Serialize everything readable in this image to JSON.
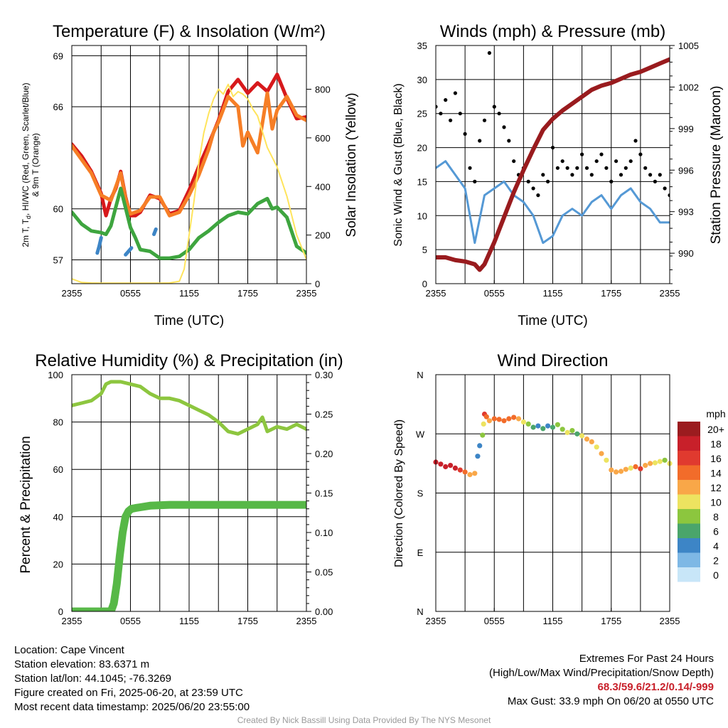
{
  "chart_data": [
    {
      "type": "line",
      "title": "Temperature (F) & Insolation (W/m²)",
      "xlabel": "Time (UTC)",
      "ylabel": "2m T, Td, HI/WC (Red, Green, Scarlet/Blue) & 9m T (Orange)",
      "ylabel_lines": [
        "2m T, T",
        "d",
        ", HI/WC (Red, Green, Scarlet/Blue)",
        "& 9m T (Orange)"
      ],
      "y2label": "Solar Insolation (Yellow)",
      "xticks": [
        "2355",
        "0555",
        "1155",
        "1755",
        "2355"
      ],
      "yticks": [
        57,
        60,
        66,
        69
      ],
      "ylim": [
        55.6,
        69.6
      ],
      "y2ticks": [
        0,
        200,
        400,
        600,
        800
      ],
      "y2lim": [
        0,
        980
      ],
      "series": [
        {
          "color": "#d7191c",
          "axis": "left",
          "x": [
            0,
            1,
            2,
            3,
            3.5,
            4,
            4.5,
            5,
            5.5,
            6,
            6.5,
            7,
            8,
            9,
            10,
            11,
            12,
            13,
            14,
            15,
            16,
            17,
            18,
            19,
            20,
            21,
            22,
            23,
            24
          ],
          "values": [
            63.8,
            63.1,
            62.2,
            60.9,
            59.6,
            60.6,
            61.2,
            62.2,
            60.7,
            59.6,
            59.6,
            59.8,
            60.8,
            60.6,
            59.7,
            59.9,
            61.1,
            62.5,
            63.8,
            65.2,
            66.9,
            67.6,
            66.8,
            67.4,
            66.9,
            67.9,
            66.5,
            65.3,
            65.4
          ]
        },
        {
          "color": "#f67e26",
          "axis": "left",
          "x": [
            0,
            2,
            3,
            4,
            5,
            5.5,
            6,
            7,
            8,
            9,
            10,
            11,
            12,
            13,
            14,
            14.5,
            15,
            16,
            17,
            17.5,
            18,
            19,
            20,
            20.5,
            21,
            22,
            23,
            24
          ],
          "values": [
            63.7,
            62.1,
            60.8,
            60.5,
            62.1,
            60.6,
            59.7,
            59.9,
            60.7,
            60.7,
            59.6,
            59.8,
            60.8,
            62.0,
            63.5,
            64.5,
            65.1,
            66.6,
            66.0,
            63.7,
            64.5,
            63.3,
            66.8,
            64.7,
            65.8,
            66.6,
            65.5,
            65.2
          ]
        },
        {
          "color": "#3ea53f",
          "axis": "left",
          "x": [
            0,
            1,
            2,
            3,
            3.5,
            4,
            5,
            6,
            6.5,
            7,
            8,
            9,
            10,
            11,
            12,
            13,
            14,
            15,
            16,
            17,
            18,
            19,
            20,
            20.5,
            21,
            22,
            23,
            24
          ],
          "values": [
            59.8,
            59.1,
            58.7,
            58.6,
            58.5,
            59.0,
            61.2,
            58.9,
            58.3,
            57.6,
            57.5,
            57.1,
            57.1,
            57.2,
            57.6,
            58.3,
            58.7,
            59.2,
            59.6,
            59.8,
            59.7,
            60.3,
            60.6,
            60.0,
            60.1,
            59.5,
            57.8,
            57.4
          ]
        },
        {
          "color": "#3d85c6",
          "axis": "left",
          "segments": [
            {
              "x": [
                2.6,
                2.8,
                3.0
              ],
              "values": [
                57.4,
                57.8,
                58.3
              ]
            },
            {
              "x": [
                5.5,
                5.8,
                6.1
              ],
              "values": [
                57.3,
                57.5,
                57.7
              ]
            },
            {
              "x": [
                8.4,
                8.6
              ],
              "values": [
                58.5,
                58.8
              ]
            }
          ]
        },
        {
          "color": "#ffe45c",
          "axis": "right",
          "x": [
            0,
            1,
            2,
            3,
            4,
            5,
            6,
            7,
            8,
            9,
            10,
            11,
            11.5,
            12,
            12.5,
            13,
            13.5,
            14,
            14.5,
            15,
            15.5,
            16,
            16.5,
            17,
            17.5,
            18,
            18.5,
            19,
            20,
            21,
            22,
            23,
            24
          ],
          "values": [
            20,
            5,
            3,
            2,
            2,
            2,
            2,
            2,
            2,
            2,
            3,
            10,
            60,
            200,
            340,
            500,
            620,
            700,
            760,
            800,
            780,
            820,
            770,
            790,
            780,
            760,
            720,
            690,
            560,
            480,
            360,
            200,
            100
          ]
        }
      ]
    },
    {
      "type": "line",
      "title": "Winds (mph) & Pressure (mb)",
      "xlabel": "Time (UTC)",
      "ylabel": "Sonic Wind & Gust (Blue, Black)",
      "y2label": "Station Pressure (Maroon)",
      "xticks": [
        "2355",
        "0555",
        "1155",
        "1755",
        "2355"
      ],
      "yticks": [
        0,
        5,
        10,
        15,
        20,
        25,
        30,
        35
      ],
      "ylim": [
        0,
        35
      ],
      "y2ticks": [
        990,
        993,
        996,
        999,
        1002,
        1005
      ],
      "y2lim": [
        987.8,
        1005
      ],
      "series": [
        {
          "name": "Sonic Wind",
          "color": "#5599d5",
          "axis": "left",
          "x": [
            0,
            1,
            2,
            3,
            3.5,
            4,
            5,
            6,
            7,
            8,
            9,
            10,
            11,
            12,
            13,
            14,
            15,
            16,
            17,
            18,
            19,
            20,
            21,
            22,
            23,
            24
          ],
          "values": [
            17,
            18,
            16,
            14,
            10,
            6,
            13,
            14,
            15,
            13,
            12,
            10,
            6,
            7,
            10,
            11,
            10,
            12,
            13,
            11,
            13,
            14,
            12,
            11,
            9,
            9
          ]
        },
        {
          "name": "Gust",
          "color": "#000000",
          "axis": "left",
          "style": "points",
          "x": [
            0,
            0.5,
            1,
            1.5,
            2,
            2.5,
            3,
            3.5,
            4,
            4.5,
            5,
            5.5,
            6,
            6.5,
            7,
            7.5,
            8,
            8.5,
            9,
            9.5,
            10,
            10.5,
            11,
            11.5,
            12,
            12.5,
            13,
            13.5,
            14,
            14.5,
            15,
            15.5,
            16,
            16.5,
            17,
            17.5,
            18,
            18.5,
            19,
            19.5,
            20,
            20.5,
            21,
            21.5,
            22,
            22.5,
            23,
            23.5,
            24
          ],
          "values": [
            26,
            25,
            27,
            24,
            28,
            25,
            22,
            17,
            15,
            21,
            24,
            33.9,
            26,
            25,
            23,
            21,
            18,
            16,
            17,
            15,
            14,
            13,
            16,
            15,
            20,
            17,
            18,
            17,
            16,
            17,
            19,
            17,
            16,
            18,
            19,
            17,
            15,
            18,
            16,
            17,
            18,
            21,
            19,
            17,
            16,
            15,
            16,
            14,
            13
          ]
        },
        {
          "name": "Station Pressure",
          "color": "#991b1e",
          "axis": "right",
          "x": [
            0,
            1,
            2,
            3,
            4,
            4.5,
            5,
            6,
            7,
            8,
            9,
            10,
            11,
            12,
            13,
            14,
            15,
            16,
            17,
            18,
            19,
            20,
            21,
            22,
            23,
            24
          ],
          "values": [
            989.7,
            989.7,
            989.5,
            989.4,
            989.2,
            988.8,
            989.2,
            990.8,
            992.6,
            994.4,
            996.0,
            997.5,
            998.9,
            999.7,
            1000.3,
            1000.8,
            1001.3,
            1001.8,
            1002.1,
            1002.3,
            1002.6,
            1002.9,
            1003.1,
            1003.4,
            1003.7,
            1004.0
          ]
        }
      ]
    },
    {
      "type": "line",
      "title": "Relative Humidity (%) & Precipitation (in)",
      "xlabel": "",
      "ylabel": "Percent & Precipitation",
      "xticks": [
        "2355",
        "0555",
        "1155",
        "1755",
        "2355"
      ],
      "yticks": [
        0,
        20,
        40,
        60,
        80,
        100
      ],
      "ylim": [
        0,
        100
      ],
      "y2ticks": [
        "0.00",
        "0.05",
        "0.10",
        "0.15",
        "0.20",
        "0.25",
        "0.30"
      ],
      "y2lim": [
        0,
        0.3
      ],
      "series": [
        {
          "name": "Relative Humidity",
          "color": "#8dc63f",
          "axis": "left",
          "x": [
            0,
            1,
            2,
            3,
            3.5,
            4,
            5,
            6,
            7,
            8,
            9,
            10,
            11,
            12,
            13,
            14,
            15,
            16,
            17,
            18,
            19,
            19.5,
            20,
            21,
            22,
            23,
            24
          ],
          "values": [
            87,
            88,
            89,
            92,
            96,
            97,
            97,
            96,
            95,
            92,
            90,
            90,
            89,
            87,
            85,
            83,
            80,
            76,
            75,
            77,
            79,
            82,
            76,
            78,
            77,
            79,
            77
          ]
        },
        {
          "name": "Precipitation",
          "color": "#57b847",
          "axis": "right",
          "style": "thick",
          "x": [
            0,
            4,
            4.3,
            4.6,
            4.9,
            5.2,
            5.5,
            5.8,
            6.1,
            6.5,
            7,
            8,
            10,
            12,
            14,
            16,
            18,
            20,
            22,
            24
          ],
          "values": [
            0,
            0,
            0.01,
            0.035,
            0.07,
            0.1,
            0.12,
            0.127,
            0.13,
            0.131,
            0.132,
            0.134,
            0.135,
            0.135,
            0.135,
            0.135,
            0.135,
            0.135,
            0.135,
            0.135
          ]
        }
      ]
    },
    {
      "type": "scatter",
      "title": "Wind Direction",
      "ylabel": "Direction (Colored By Speed)",
      "xticks": [
        "2355",
        "0555",
        "1155",
        "1755",
        "2355"
      ],
      "yticks": [
        "N",
        "E",
        "S",
        "W",
        "N"
      ],
      "ylim": [
        0,
        360
      ],
      "legend_title": "mph",
      "legend_labels": [
        "20+",
        "18",
        "16",
        "14",
        "12",
        "10",
        "8",
        "6",
        "4",
        "2",
        "0"
      ],
      "legend_colors": [
        "#9b1c1f",
        "#c8202a",
        "#e03a2f",
        "#f26c2a",
        "#f9a748",
        "#ede360",
        "#8cc63e",
        "#4aa56b",
        "#3d85c6",
        "#7eb8e5",
        "#c8e6f8"
      ],
      "points": [
        [
          0,
          227,
          18
        ],
        [
          0.5,
          224,
          18
        ],
        [
          1,
          220,
          18
        ],
        [
          1.5,
          222,
          18
        ],
        [
          2,
          218,
          18
        ],
        [
          2.5,
          215,
          16
        ],
        [
          3,
          212,
          14
        ],
        [
          3.5,
          208,
          12
        ],
        [
          4,
          210,
          12
        ],
        [
          4.3,
          236,
          4
        ],
        [
          4.5,
          252,
          4
        ],
        [
          4.8,
          268,
          8
        ],
        [
          4.9,
          285,
          10
        ],
        [
          5,
          300,
          16
        ],
        [
          5.2,
          296,
          14
        ],
        [
          5.5,
          290,
          12
        ],
        [
          6,
          293,
          14
        ],
        [
          6.5,
          292,
          14
        ],
        [
          7,
          290,
          14
        ],
        [
          7.5,
          293,
          14
        ],
        [
          8,
          295,
          14
        ],
        [
          8.5,
          293,
          12
        ],
        [
          9,
          288,
          10
        ],
        [
          9.5,
          285,
          8
        ],
        [
          10,
          280,
          6
        ],
        [
          10.5,
          282,
          4
        ],
        [
          11,
          278,
          6
        ],
        [
          11.5,
          282,
          4
        ],
        [
          12,
          280,
          6
        ],
        [
          12.5,
          284,
          8
        ],
        [
          13,
          277,
          8
        ],
        [
          13.5,
          272,
          10
        ],
        [
          14,
          275,
          8
        ],
        [
          14.5,
          270,
          6
        ],
        [
          15,
          267,
          10
        ],
        [
          15.5,
          262,
          12
        ],
        [
          16,
          258,
          12
        ],
        [
          16.5,
          250,
          10
        ],
        [
          17,
          240,
          12
        ],
        [
          17.5,
          230,
          10
        ],
        [
          18,
          215,
          12
        ],
        [
          18.5,
          212,
          12
        ],
        [
          19,
          213,
          12
        ],
        [
          19.5,
          216,
          12
        ],
        [
          20,
          218,
          10
        ],
        [
          20.5,
          220,
          14
        ],
        [
          21,
          217,
          16
        ],
        [
          21.5,
          222,
          12
        ],
        [
          22,
          225,
          12
        ],
        [
          22.5,
          226,
          10
        ],
        [
          23,
          228,
          10
        ],
        [
          23.5,
          230,
          8
        ],
        [
          24,
          225,
          10
        ]
      ]
    }
  ],
  "info": {
    "location": "Location: Cape Vincent",
    "elevation": "Station elevation: 83.6371 m",
    "latlon": "Station lat/lon: 44.1045; -76.3269",
    "created": "Figure created on Fri, 2025-06-20, at 23:59 UTC",
    "recent": "Most recent data timestamp: 2025/06/20 23:55:00"
  },
  "extremes": {
    "title": "Extremes For Past 24 Hours",
    "subtitle": "(High/Low/Max Wind/Precipitation/Snow Depth)",
    "values": "68.3/59.6/21.2/0.14/-999",
    "gust": "Max Gust: 33.9 mph On 06/20 at 0550 UTC"
  },
  "credit": "Created By Nick Bassill Using Data Provided By The NYS Mesonet"
}
